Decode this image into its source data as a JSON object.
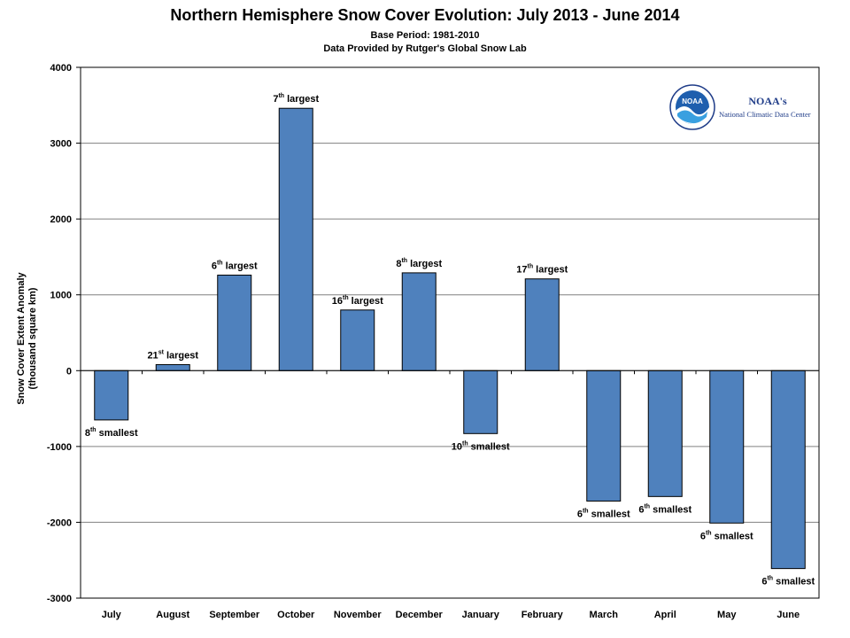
{
  "title": "Northern Hemisphere Snow Cover Evolution: July 2013 - June 2014",
  "subtitle1": "Base Period: 1981-2010",
  "subtitle2": "Data Provided by Rutger's Global Snow Lab",
  "logo": {
    "emblem_text": "NOAA",
    "name": "NOAA's",
    "center": "National Climatic Data Center"
  },
  "colors": {
    "bar": "#4f81bd",
    "bar_edge": "#000000",
    "grid": "#808080"
  },
  "chart_data": {
    "type": "bar",
    "title": "Northern Hemisphere Snow Cover Evolution: July 2013 - June 2014",
    "ylabel": "Snow Cover Extent Anomaly (thousand square km)",
    "ylabel_lines": [
      "Snow Cover Extent Anomaly",
      "(thousand square km)"
    ],
    "xlabel": "",
    "ylim": [
      -3000,
      4000
    ],
    "yticks": [
      -3000,
      -2000,
      -1000,
      0,
      1000,
      2000,
      3000,
      4000
    ],
    "grid": true,
    "categories": [
      "July",
      "August",
      "September",
      "October",
      "November",
      "December",
      "January",
      "February",
      "March",
      "April",
      "May",
      "June"
    ],
    "values": [
      -650,
      80,
      1260,
      3460,
      800,
      1290,
      -830,
      1210,
      -1720,
      -1660,
      -2010,
      -2610
    ],
    "annotations": [
      {
        "num": "8",
        "sup": "th",
        "text": "smallest"
      },
      {
        "num": "21",
        "sup": "st",
        "text": "largest"
      },
      {
        "num": "6",
        "sup": "th",
        "text": "largest"
      },
      {
        "num": "7",
        "sup": "th",
        "text": "largest"
      },
      {
        "num": "16",
        "sup": "th",
        "text": "largest"
      },
      {
        "num": "8",
        "sup": "th",
        "text": "largest"
      },
      {
        "num": "10",
        "sup": "th",
        "text": "smallest"
      },
      {
        "num": "17",
        "sup": "th",
        "text": "largest"
      },
      {
        "num": "6",
        "sup": "th",
        "text": "smallest"
      },
      {
        "num": "6",
        "sup": "th",
        "text": "smallest"
      },
      {
        "num": "6",
        "sup": "th",
        "text": "smallest"
      },
      {
        "num": "6",
        "sup": "th",
        "text": "smallest"
      }
    ]
  }
}
